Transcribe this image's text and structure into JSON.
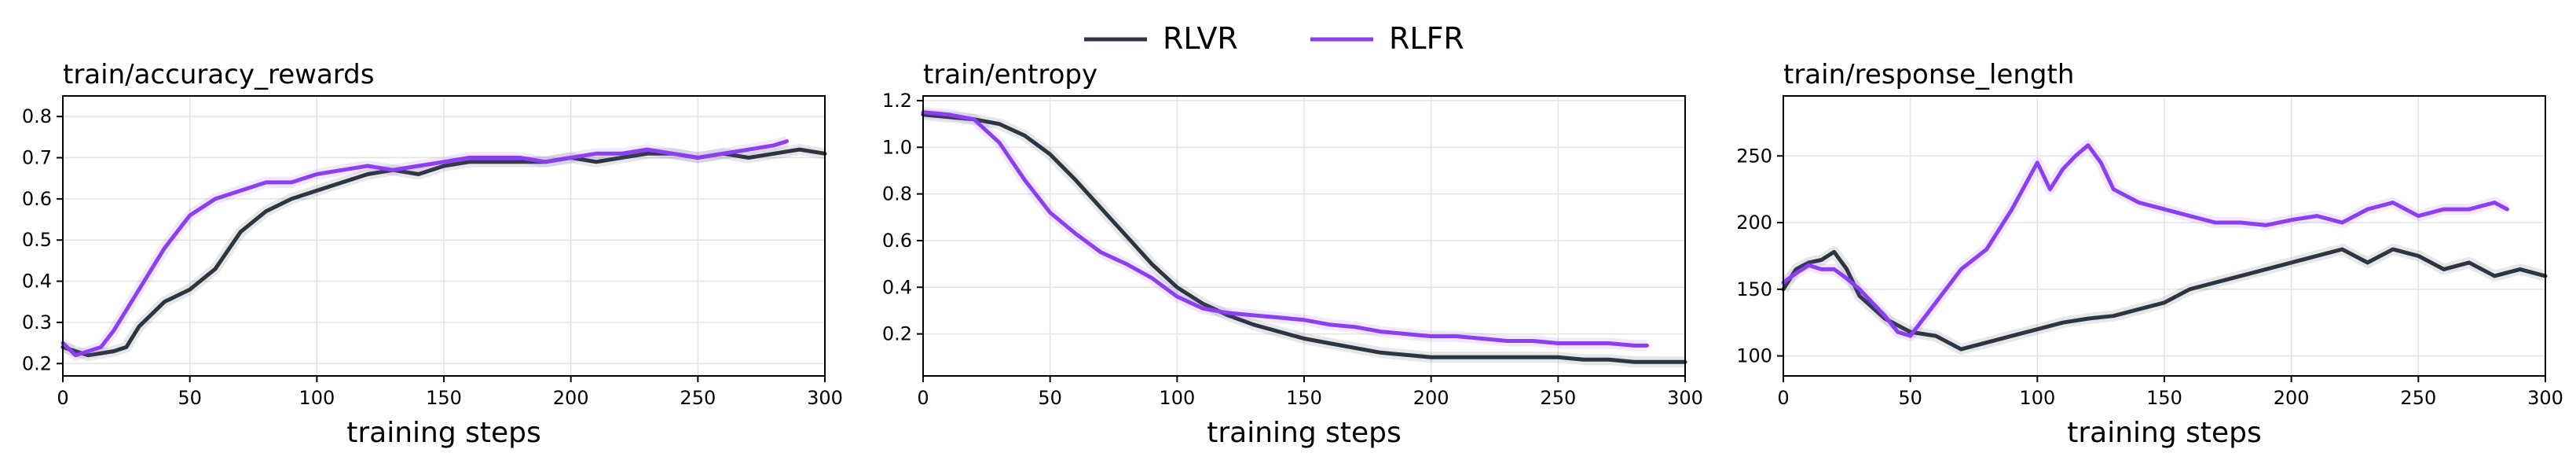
{
  "legend": {
    "placement": "top-center",
    "entries": [
      {
        "name": "RLVR",
        "color": "#2d3640"
      },
      {
        "name": "RLFR",
        "color": "#8b3ff0"
      }
    ]
  },
  "colors": {
    "rlvr": "#2d3640",
    "rlfr": "#8b3ff0",
    "grid": "#e3e3e3"
  },
  "chart_data": [
    {
      "type": "line",
      "title": "train/accuracy_rewards",
      "xlabel": "training steps",
      "ylabel": "",
      "xlim": [
        0,
        300
      ],
      "ylim": [
        0.17,
        0.85
      ],
      "xticks": [
        0,
        50,
        100,
        150,
        200,
        250,
        300
      ],
      "yticks": [
        0.2,
        0.3,
        0.4,
        0.5,
        0.6,
        0.7,
        0.8
      ],
      "grid": true,
      "series": [
        {
          "name": "RLVR",
          "x": [
            0,
            10,
            20,
            25,
            30,
            40,
            50,
            60,
            70,
            80,
            90,
            100,
            110,
            120,
            130,
            140,
            150,
            160,
            170,
            180,
            190,
            200,
            210,
            220,
            230,
            240,
            250,
            260,
            270,
            280,
            290,
            300
          ],
          "y": [
            0.24,
            0.22,
            0.23,
            0.24,
            0.29,
            0.35,
            0.38,
            0.43,
            0.52,
            0.57,
            0.6,
            0.62,
            0.64,
            0.66,
            0.67,
            0.66,
            0.68,
            0.69,
            0.69,
            0.69,
            0.69,
            0.7,
            0.69,
            0.7,
            0.71,
            0.71,
            0.7,
            0.71,
            0.7,
            0.71,
            0.72,
            0.71
          ]
        },
        {
          "name": "RLFR",
          "x": [
            0,
            5,
            10,
            15,
            20,
            30,
            40,
            50,
            60,
            70,
            80,
            90,
            100,
            110,
            120,
            130,
            140,
            150,
            160,
            170,
            180,
            190,
            200,
            210,
            220,
            230,
            240,
            250,
            260,
            270,
            280,
            285
          ],
          "y": [
            0.25,
            0.22,
            0.23,
            0.24,
            0.28,
            0.38,
            0.48,
            0.56,
            0.6,
            0.62,
            0.64,
            0.64,
            0.66,
            0.67,
            0.68,
            0.67,
            0.68,
            0.69,
            0.7,
            0.7,
            0.7,
            0.69,
            0.7,
            0.71,
            0.71,
            0.72,
            0.71,
            0.7,
            0.71,
            0.72,
            0.73,
            0.74
          ]
        }
      ]
    },
    {
      "type": "line",
      "title": "train/entropy",
      "xlabel": "training steps",
      "ylabel": "",
      "xlim": [
        0,
        300
      ],
      "ylim": [
        0.02,
        1.22
      ],
      "xticks": [
        0,
        50,
        100,
        150,
        200,
        250,
        300
      ],
      "yticks": [
        0.2,
        0.4,
        0.6,
        0.8,
        1.0,
        1.2
      ],
      "grid": true,
      "series": [
        {
          "name": "RLVR",
          "x": [
            0,
            10,
            20,
            30,
            40,
            50,
            60,
            70,
            80,
            90,
            100,
            110,
            120,
            130,
            140,
            150,
            160,
            170,
            180,
            190,
            200,
            210,
            220,
            230,
            240,
            250,
            260,
            270,
            280,
            290,
            300
          ],
          "y": [
            1.14,
            1.13,
            1.12,
            1.1,
            1.05,
            0.97,
            0.86,
            0.74,
            0.62,
            0.5,
            0.4,
            0.33,
            0.28,
            0.24,
            0.21,
            0.18,
            0.16,
            0.14,
            0.12,
            0.11,
            0.1,
            0.1,
            0.1,
            0.1,
            0.1,
            0.1,
            0.09,
            0.09,
            0.08,
            0.08,
            0.08
          ]
        },
        {
          "name": "RLFR",
          "x": [
            0,
            10,
            20,
            30,
            40,
            50,
            60,
            70,
            80,
            90,
            100,
            110,
            120,
            130,
            140,
            150,
            160,
            170,
            180,
            190,
            200,
            210,
            220,
            230,
            240,
            250,
            260,
            270,
            280,
            285
          ],
          "y": [
            1.15,
            1.14,
            1.12,
            1.02,
            0.86,
            0.72,
            0.63,
            0.55,
            0.5,
            0.44,
            0.36,
            0.31,
            0.29,
            0.28,
            0.27,
            0.26,
            0.24,
            0.23,
            0.21,
            0.2,
            0.19,
            0.19,
            0.18,
            0.17,
            0.17,
            0.16,
            0.16,
            0.16,
            0.15,
            0.15
          ]
        }
      ]
    },
    {
      "type": "line",
      "title": "train/response_length",
      "xlabel": "training steps",
      "ylabel": "",
      "xlim": [
        0,
        300
      ],
      "ylim": [
        85,
        295
      ],
      "xticks": [
        0,
        50,
        100,
        150,
        200,
        250,
        300
      ],
      "yticks": [
        100,
        150,
        200,
        250
      ],
      "grid": true,
      "series": [
        {
          "name": "RLVR",
          "x": [
            0,
            5,
            10,
            15,
            20,
            25,
            30,
            40,
            50,
            60,
            70,
            80,
            90,
            100,
            110,
            120,
            130,
            140,
            150,
            160,
            170,
            180,
            190,
            200,
            210,
            220,
            230,
            240,
            250,
            260,
            270,
            280,
            290,
            300
          ],
          "y": [
            150,
            165,
            170,
            172,
            178,
            165,
            145,
            128,
            118,
            115,
            105,
            110,
            115,
            120,
            125,
            128,
            130,
            135,
            140,
            150,
            155,
            160,
            165,
            170,
            175,
            180,
            170,
            180,
            175,
            165,
            170,
            160,
            165,
            160
          ]
        },
        {
          "name": "RLFR",
          "x": [
            0,
            5,
            10,
            15,
            20,
            25,
            30,
            40,
            45,
            50,
            60,
            70,
            80,
            90,
            100,
            105,
            110,
            115,
            120,
            125,
            130,
            140,
            150,
            160,
            170,
            180,
            190,
            200,
            210,
            220,
            230,
            240,
            250,
            260,
            270,
            280,
            285
          ],
          "y": [
            155,
            162,
            168,
            165,
            165,
            158,
            150,
            130,
            118,
            115,
            140,
            165,
            180,
            210,
            245,
            225,
            240,
            250,
            258,
            245,
            225,
            215,
            210,
            205,
            200,
            200,
            198,
            202,
            205,
            200,
            210,
            215,
            205,
            210,
            210,
            215,
            210
          ]
        }
      ]
    }
  ]
}
